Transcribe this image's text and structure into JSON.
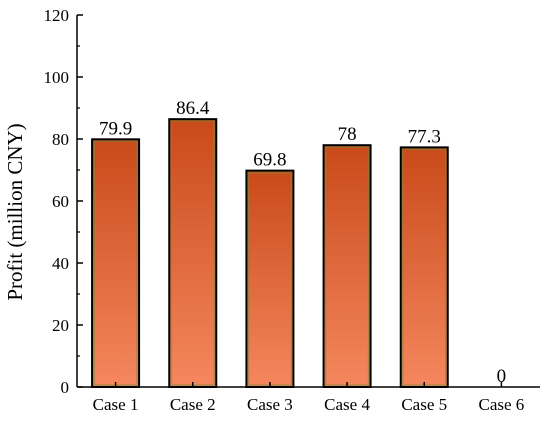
{
  "chart_data": {
    "type": "bar",
    "categories": [
      "Case 1",
      "Case 2",
      "Case 3",
      "Case 4",
      "Case 5",
      "Case 6"
    ],
    "values": [
      79.9,
      86.4,
      69.8,
      78,
      77.3,
      0
    ],
    "data_labels": [
      "79.9",
      "86.4",
      "69.8",
      "78",
      "77.3",
      "0"
    ],
    "ylabel": "Profit (million CNY)",
    "xlabel": "",
    "ylim": [
      0,
      120
    ],
    "yticks": [
      0,
      20,
      40,
      60,
      80,
      100,
      120
    ],
    "ytick_labels": [
      "0",
      "20",
      "40",
      "60",
      "80",
      "100",
      "120"
    ],
    "grid": false,
    "colors": {
      "bar_top": "#c94a1a",
      "bar_bottom": "#f5875e",
      "bar_edge": "#000000",
      "bar_inner_edge": "#7a8a3a",
      "axis": "#000000"
    }
  }
}
